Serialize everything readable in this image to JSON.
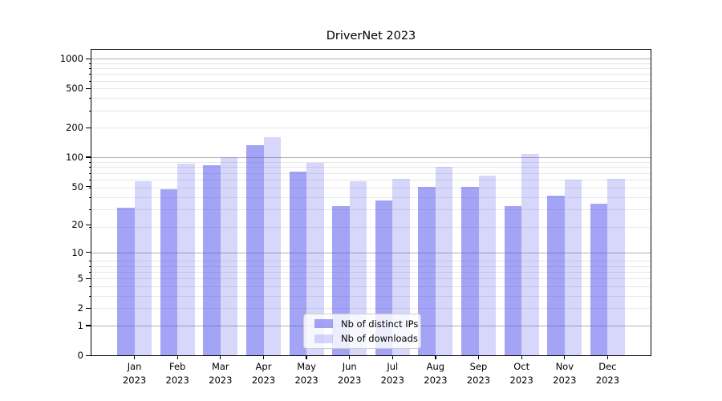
{
  "title": "DriverNet 2023",
  "colors": {
    "background": "#ffffff",
    "spine": "#000000",
    "text": "#000000",
    "grid_major": "#b0b0b0",
    "grid_minor": "#e7e7e7",
    "series_base": "#5050f0"
  },
  "chart_data": {
    "type": "bar",
    "title": "DriverNet 2023",
    "xlabel": "",
    "ylabel": "",
    "yscale": "log1p",
    "ylim": [
      0,
      1340
    ],
    "grid": true,
    "legend_position": "lower center",
    "year": "2023",
    "categories": [
      "Jan",
      "Feb",
      "Mar",
      "Apr",
      "May",
      "Jun",
      "Jul",
      "Aug",
      "Sep",
      "Oct",
      "Nov",
      "Dec"
    ],
    "y_ticks": [
      0,
      1,
      2,
      5,
      10,
      20,
      50,
      100,
      200,
      500,
      1000
    ],
    "major_gridlines": [
      1,
      10,
      100,
      1000
    ],
    "series": [
      {
        "name": "Nb of distinct IPs",
        "color": "#5050f0",
        "alpha": 0.52,
        "values": [
          30,
          47,
          82,
          132,
          71,
          31,
          36,
          50,
          50,
          31,
          40,
          33
        ]
      },
      {
        "name": "Nb of downloads",
        "color": "#5050f0",
        "alpha": 0.23,
        "values": [
          57,
          86,
          100,
          161,
          88,
          57,
          60,
          80,
          65,
          108,
          59,
          60
        ]
      }
    ]
  }
}
